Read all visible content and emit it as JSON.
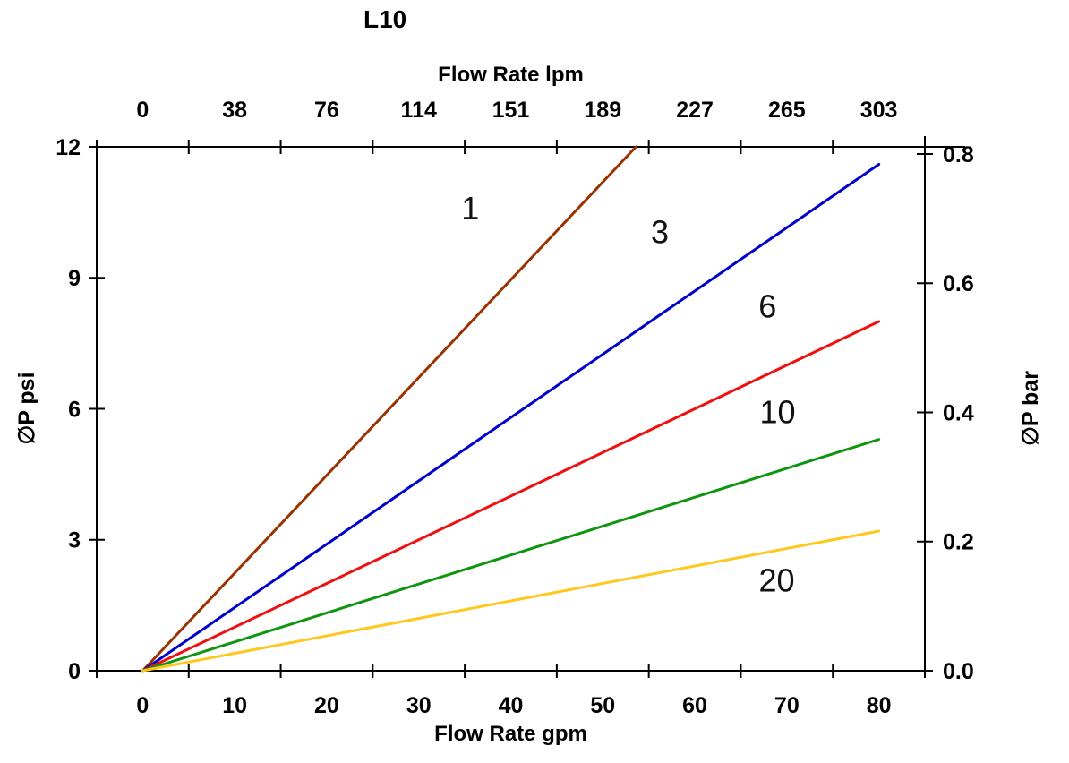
{
  "chart_data": {
    "type": "line",
    "title": "L10",
    "grid": false,
    "legend": "none (inline labels on curves)",
    "axes": {
      "top": {
        "label": "Flow Rate lpm",
        "tick_labels": [
          "0",
          "38",
          "76",
          "114",
          "151",
          "189",
          "227",
          "265",
          "303"
        ]
      },
      "bottom": {
        "label": "Flow Rate gpm",
        "tick_labels": [
          "0",
          "10",
          "20",
          "30",
          "40",
          "50",
          "60",
          "70",
          "80"
        ],
        "tick_values_gpm": [
          0,
          10,
          20,
          30,
          40,
          50,
          60,
          70,
          80
        ],
        "range_gpm": [
          0,
          80
        ]
      },
      "left": {
        "label": "∅P psi",
        "tick_labels": [
          "0",
          "3",
          "6",
          "9",
          "12"
        ],
        "tick_values_psi": [
          0,
          3,
          6,
          9,
          12
        ],
        "range_psi": [
          0,
          12
        ]
      },
      "right": {
        "label": "∅P bar",
        "tick_labels": [
          "0.0",
          "0.2",
          "0.4",
          "0.6",
          "0.8"
        ],
        "tick_values_bar": [
          0,
          0.2,
          0.4,
          0.6,
          0.8
        ],
        "range_bar": [
          0,
          0.8
        ]
      }
    },
    "series": [
      {
        "name": "1",
        "color": "#993300",
        "points_gpm_psi": [
          [
            0,
            0
          ],
          [
            53.6,
            12.0
          ]
        ],
        "note": "clipped at top axis (12 psi) near 53.6 gpm",
        "label": {
          "text": "1",
          "x_gpm": 35.6,
          "y_psi": 10.6
        }
      },
      {
        "name": "3",
        "color": "#0000CC",
        "points_gpm_psi": [
          [
            0,
            0
          ],
          [
            80,
            11.6
          ]
        ],
        "label": {
          "text": "3",
          "x_gpm": 56.2,
          "y_psi": 10.05
        }
      },
      {
        "name": "6",
        "color": "#EE1111",
        "points_gpm_psi": [
          [
            0,
            0
          ],
          [
            80,
            8.0
          ]
        ],
        "label": {
          "text": "6",
          "x_gpm": 67.9,
          "y_psi": 8.35
        }
      },
      {
        "name": "10",
        "color": "#0F940F",
        "points_gpm_psi": [
          [
            0,
            0
          ],
          [
            80,
            5.3
          ]
        ],
        "label": {
          "text": "10",
          "x_gpm": 69.0,
          "y_psi": 5.93
        }
      },
      {
        "name": "20",
        "color": "#FFC81E",
        "points_gpm_psi": [
          [
            0,
            0
          ],
          [
            80,
            3.2
          ]
        ],
        "label": {
          "text": "20",
          "x_gpm": 68.9,
          "y_psi": 2.07
        }
      }
    ]
  }
}
